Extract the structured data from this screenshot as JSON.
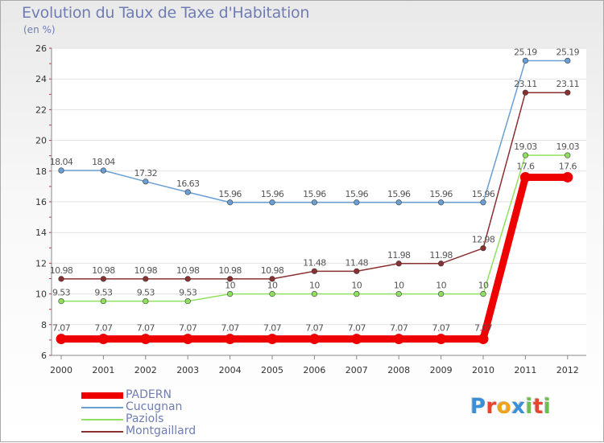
{
  "title": "Evolution du Taux de Taxe d'Habitation",
  "unit_label": "(en %)",
  "logo": {
    "text": "Proxiti",
    "letters": [
      {
        "ch": "P",
        "color": "#3a8fd8"
      },
      {
        "ch": "r",
        "color": "#e8452e"
      },
      {
        "ch": "o",
        "color": "#f2a21a"
      },
      {
        "ch": "x",
        "color": "#3a8fd8"
      },
      {
        "ch": "i",
        "color": "#6cc04a"
      },
      {
        "ch": "t",
        "color": "#e8452e"
      },
      {
        "ch": "i",
        "color": "#6cc04a"
      }
    ]
  },
  "chart_data": {
    "type": "line",
    "title": "Evolution du Taux de Taxe d'Habitation",
    "ylabel": "(en %)",
    "xlabel": "",
    "categories": [
      "2000",
      "2001",
      "2002",
      "2003",
      "2004",
      "2005",
      "2006",
      "2007",
      "2008",
      "2009",
      "2010",
      "2011",
      "2012"
    ],
    "ylim": [
      6,
      26
    ],
    "yticks": [
      6,
      8,
      10,
      12,
      14,
      16,
      18,
      20,
      22,
      24,
      26
    ],
    "grid": "horizontal",
    "legend_position": "bottom-left",
    "series": [
      {
        "name": "PADERN",
        "color": "#ee0000",
        "emphasis": true,
        "values": [
          7.07,
          7.07,
          7.07,
          7.07,
          7.07,
          7.07,
          7.07,
          7.07,
          7.07,
          7.07,
          7.07,
          17.6,
          17.6
        ],
        "labels": [
          "7.07",
          "7.07",
          "7.07",
          "7.07",
          "7.07",
          "7.07",
          "7.07",
          "7.07",
          "7.07",
          "7.07",
          "7.07",
          "17.6",
          "17.6"
        ]
      },
      {
        "name": "Cucugnan",
        "color": "#6a9fd4",
        "values": [
          18.04,
          18.04,
          17.32,
          16.63,
          15.96,
          15.96,
          15.96,
          15.96,
          15.96,
          15.96,
          15.96,
          25.19,
          25.19
        ],
        "labels": [
          "18.04",
          "18.04",
          "17.32",
          "16.63",
          "15.96",
          "15.96",
          "15.96",
          "15.96",
          "15.96",
          "15.96",
          "15.96",
          "25.19",
          "25.19"
        ]
      },
      {
        "name": "Paziols",
        "color": "#90e060",
        "values": [
          9.53,
          9.53,
          9.53,
          9.53,
          10,
          10,
          10,
          10,
          10,
          10,
          10,
          19.03,
          19.03
        ],
        "labels": [
          "9.53",
          "9.53",
          "9.53",
          "9.53",
          "10",
          "10",
          "10",
          "10",
          "10",
          "10",
          "10",
          "19.03",
          "19.03"
        ]
      },
      {
        "name": "Montgaillard",
        "color": "#8a3030",
        "values": [
          10.98,
          10.98,
          10.98,
          10.98,
          10.98,
          10.98,
          11.48,
          11.48,
          11.98,
          11.98,
          12.98,
          23.11,
          23.11
        ],
        "labels": [
          "10.98",
          "10.98",
          "10.98",
          "10.98",
          "10.98",
          "10.98",
          "11.48",
          "11.48",
          "11.98",
          "11.98",
          "12.98",
          "23.11",
          "23.11"
        ]
      }
    ]
  }
}
